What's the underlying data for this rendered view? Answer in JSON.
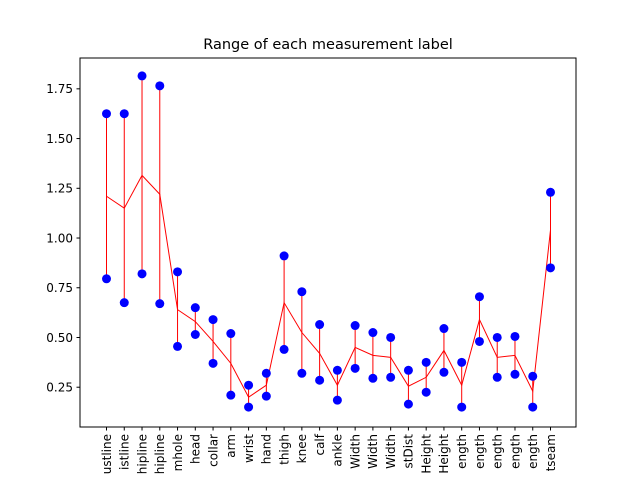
{
  "chart_data": {
    "type": "scatter",
    "title": "Range of each measurement label",
    "xlabel": "",
    "ylabel": "",
    "ylim": [
      0.05,
      1.905
    ],
    "yticks": [
      0.25,
      0.5,
      0.75,
      1.0,
      1.25,
      1.5,
      1.75
    ],
    "ytick_labels": [
      "0.25",
      "0.50",
      "0.75",
      "1.00",
      "1.25",
      "1.50",
      "1.75"
    ],
    "grid": false,
    "legend": "none",
    "categories": [
      "ustline",
      "istline",
      "hipline",
      "hipline",
      "mhole",
      "head",
      "collar",
      "arm",
      "wrist",
      "hand",
      "thigh",
      "knee",
      "calf",
      "ankle",
      "Width",
      "Width",
      "Width",
      "stDist",
      "Height",
      "Height",
      "ength",
      "ength",
      "ength",
      "ength",
      "ength",
      "tseam"
    ],
    "min": [
      0.795,
      0.675,
      0.82,
      0.67,
      0.455,
      0.515,
      0.37,
      0.21,
      0.15,
      0.205,
      0.44,
      0.32,
      0.285,
      0.185,
      0.345,
      0.295,
      0.3,
      0.165,
      0.225,
      0.325,
      0.15,
      0.48,
      0.3,
      0.315,
      0.15,
      0.85
    ],
    "max": [
      1.625,
      1.625,
      1.815,
      1.765,
      0.83,
      0.65,
      0.59,
      0.52,
      0.26,
      0.32,
      0.91,
      0.73,
      0.565,
      0.335,
      0.56,
      0.525,
      0.5,
      0.335,
      0.375,
      0.545,
      0.375,
      0.705,
      0.5,
      0.505,
      0.305,
      1.23
    ],
    "mean": [
      1.21,
      1.15,
      1.315,
      1.22,
      0.64,
      0.58,
      0.48,
      0.37,
      0.2,
      0.26,
      0.675,
      0.525,
      0.42,
      0.26,
      0.45,
      0.41,
      0.4,
      0.255,
      0.3,
      0.435,
      0.26,
      0.59,
      0.4,
      0.41,
      0.23,
      1.04
    ],
    "colors": {
      "points": "#0000ff",
      "lines": "#ff0000",
      "axes": "#000000"
    }
  }
}
